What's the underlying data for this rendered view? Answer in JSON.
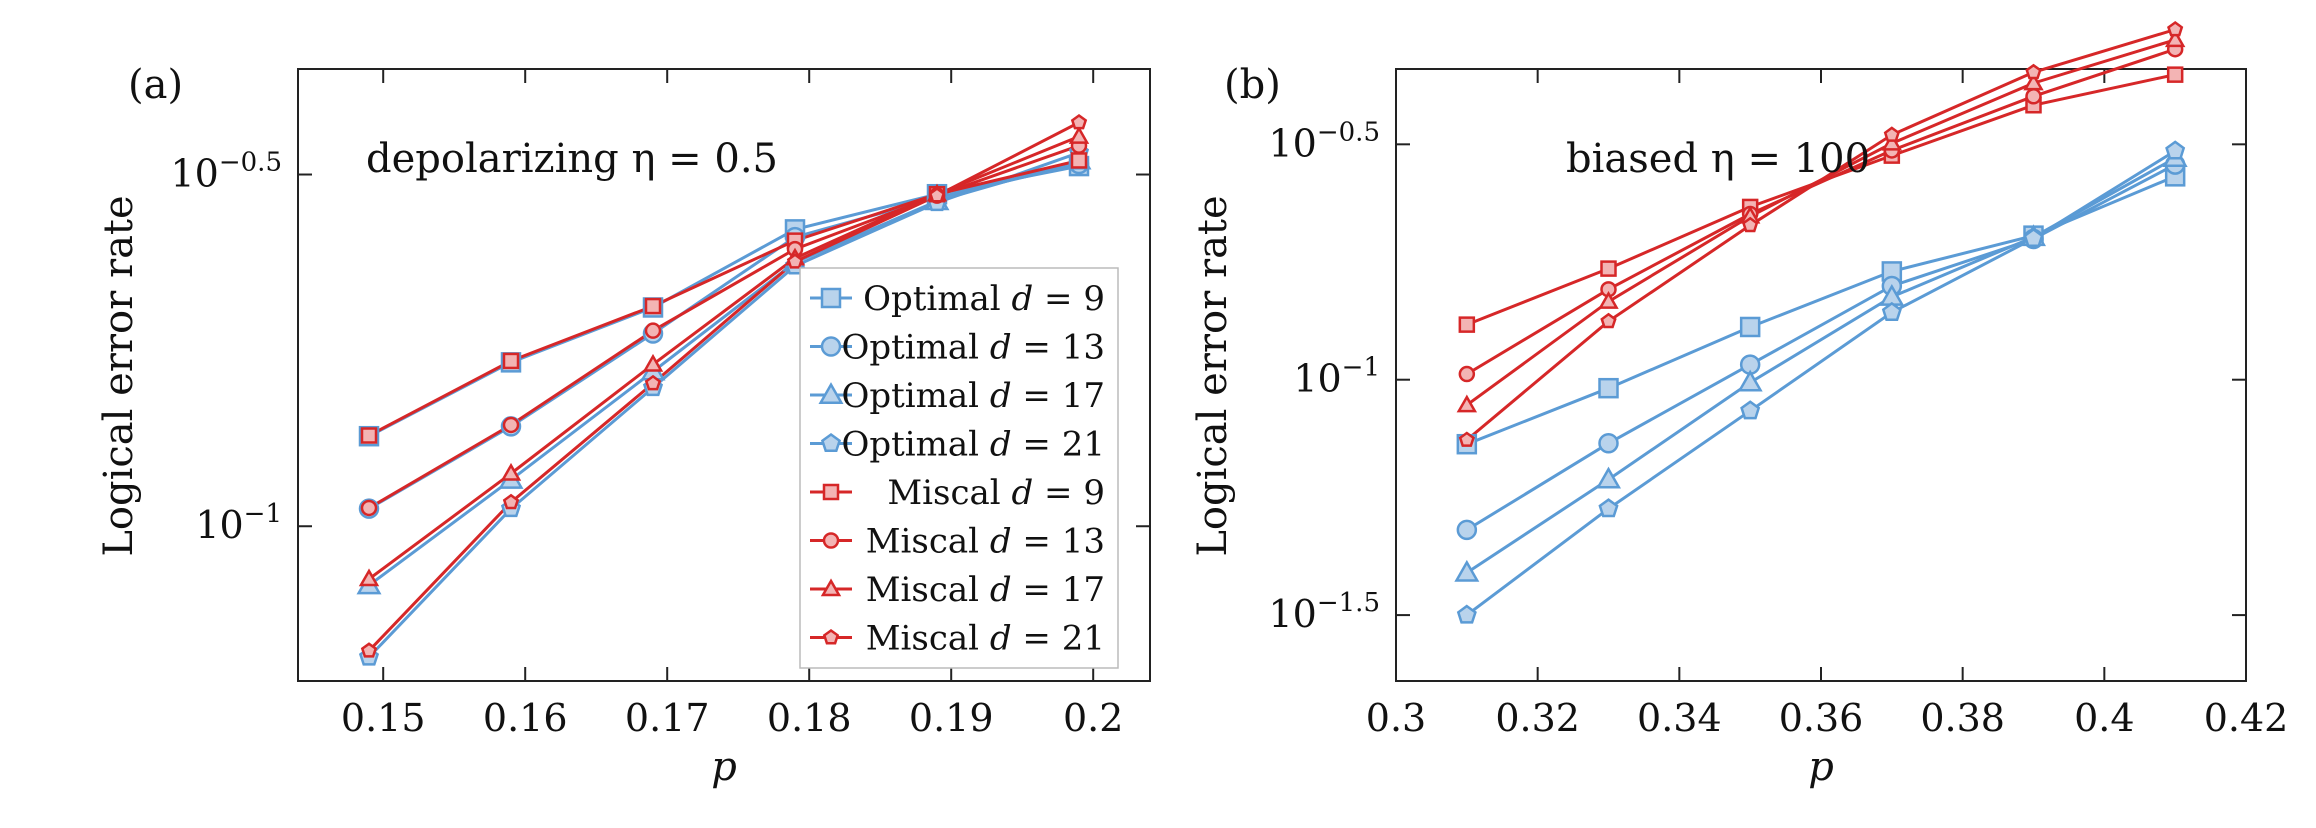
{
  "colors": {
    "optimal": "#5b9bd5",
    "optimal_fill": "#b9d3ec",
    "miscal": "#d62728",
    "miscal_fill": "#f3b4b4"
  },
  "chart_data": [
    {
      "panel_label": "(a)",
      "type": "line",
      "annotation": "depolarizing η = 0.5",
      "xlabel": "p",
      "ylabel": "Logical error rate",
      "y_scale": "log",
      "xlim": [
        0.144,
        0.204
      ],
      "ylim_log10": [
        -1.22,
        -0.35
      ],
      "x_ticks": [
        0.15,
        0.16,
        0.17,
        0.18,
        0.19,
        0.2
      ],
      "x_tick_labels": [
        "0.15",
        "0.16",
        "0.17",
        "0.18",
        "0.19",
        "0.2"
      ],
      "y_ticks_log10": [
        -0.5,
        -1
      ],
      "y_tick_exponents": [
        "−0.5",
        "−1"
      ],
      "legend_position": "lower-right",
      "x": [
        0.149,
        0.159,
        0.169,
        0.179,
        0.189,
        0.199
      ],
      "series": [
        {
          "name": "Optimal d = 9",
          "group": "optimal",
          "marker": "square",
          "values_log10": [
            -0.872,
            -0.767,
            -0.689,
            -0.578,
            -0.528,
            -0.488
          ]
        },
        {
          "name": "Optimal d = 13",
          "group": "optimal",
          "marker": "circle",
          "values_log10": [
            -0.975,
            -0.858,
            -0.726,
            -0.589,
            -0.533,
            -0.485
          ]
        },
        {
          "name": "Optimal d = 17",
          "group": "optimal",
          "marker": "triangle",
          "values_log10": [
            -1.084,
            -0.934,
            -0.78,
            -0.625,
            -0.538,
            -0.48
          ]
        },
        {
          "name": "Optimal d = 21",
          "group": "optimal",
          "marker": "pentagon",
          "values_log10": [
            -1.186,
            -0.975,
            -0.803,
            -0.63,
            -0.54,
            -0.469
          ]
        },
        {
          "name": "Miscal d = 9",
          "group": "miscal",
          "marker": "square",
          "values_log10": [
            -0.871,
            -0.765,
            -0.687,
            -0.594,
            -0.528,
            -0.48
          ]
        },
        {
          "name": "Miscal d = 13",
          "group": "miscal",
          "marker": "circle",
          "values_log10": [
            -0.974,
            -0.856,
            -0.722,
            -0.606,
            -0.53,
            -0.459
          ]
        },
        {
          "name": "Miscal d = 17",
          "group": "miscal",
          "marker": "triangle",
          "values_log10": [
            -1.075,
            -0.925,
            -0.77,
            -0.619,
            -0.528,
            -0.446
          ]
        },
        {
          "name": "Miscal d = 21",
          "group": "miscal",
          "marker": "pentagon",
          "values_log10": [
            -1.177,
            -0.966,
            -0.797,
            -0.624,
            -0.53,
            -0.426
          ]
        }
      ],
      "legend": [
        {
          "label": "Optimal",
          "d": "9",
          "group": "optimal",
          "marker": "square"
        },
        {
          "label": "Optimal",
          "d": "13",
          "group": "optimal",
          "marker": "circle"
        },
        {
          "label": "Optimal",
          "d": "17",
          "group": "optimal",
          "marker": "triangle"
        },
        {
          "label": "Optimal",
          "d": "21",
          "group": "optimal",
          "marker": "pentagon"
        },
        {
          "label": "Miscal",
          "d": "9",
          "group": "miscal",
          "marker": "square"
        },
        {
          "label": "Miscal",
          "d": "13",
          "group": "miscal",
          "marker": "circle"
        },
        {
          "label": "Miscal",
          "d": "17",
          "group": "miscal",
          "marker": "triangle"
        },
        {
          "label": "Miscal",
          "d": "21",
          "group": "miscal",
          "marker": "pentagon"
        }
      ]
    },
    {
      "panel_label": "(b)",
      "type": "line",
      "annotation": "biased η = 100",
      "xlabel": "p",
      "ylabel": "Logical error rate",
      "y_scale": "log",
      "xlim": [
        0.3,
        0.42
      ],
      "ylim_log10": [
        -1.64,
        -0.34
      ],
      "x_ticks": [
        0.3,
        0.32,
        0.34,
        0.36,
        0.38,
        0.4,
        0.42
      ],
      "x_tick_labels": [
        "0.3",
        "0.32",
        "0.34",
        "0.36",
        "0.38",
        "0.4",
        "0.42"
      ],
      "y_ticks_log10": [
        -0.5,
        -1,
        -1.5
      ],
      "y_tick_exponents": [
        "−0.5",
        "−1",
        "−1.5"
      ],
      "x": [
        0.31,
        0.33,
        0.35,
        0.37,
        0.39,
        0.41
      ],
      "series": [
        {
          "name": "Optimal d = 9",
          "group": "optimal",
          "marker": "square",
          "values_log10": [
            -1.137,
            -1.018,
            -0.888,
            -0.77,
            -0.694,
            -0.568
          ]
        },
        {
          "name": "Optimal d = 13",
          "group": "optimal",
          "marker": "circle",
          "values_log10": [
            -1.319,
            -1.135,
            -0.968,
            -0.801,
            -0.701,
            -0.543
          ]
        },
        {
          "name": "Optimal d = 17",
          "group": "optimal",
          "marker": "triangle",
          "values_log10": [
            -1.41,
            -1.212,
            -1.006,
            -0.824,
            -0.697,
            -0.529
          ]
        },
        {
          "name": "Optimal d = 21",
          "group": "optimal",
          "marker": "pentagon",
          "values_log10": [
            -1.5,
            -1.274,
            -1.066,
            -0.857,
            -0.7,
            -0.514
          ]
        },
        {
          "name": "Miscal d = 9",
          "group": "miscal",
          "marker": "square",
          "values_log10": [
            -0.883,
            -0.764,
            -0.633,
            -0.524,
            -0.417,
            -0.352
          ]
        },
        {
          "name": "Miscal d = 13",
          "group": "miscal",
          "marker": "circle",
          "values_log10": [
            -0.988,
            -0.808,
            -0.648,
            -0.513,
            -0.398,
            -0.298
          ]
        },
        {
          "name": "Miscal d = 17",
          "group": "miscal",
          "marker": "triangle",
          "values_log10": [
            -1.054,
            -0.834,
            -0.653,
            -0.498,
            -0.37,
            -0.278
          ]
        },
        {
          "name": "Miscal d = 21",
          "group": "miscal",
          "marker": "pentagon",
          "values_log10": [
            -1.128,
            -0.876,
            -0.672,
            -0.48,
            -0.347,
            -0.256
          ]
        }
      ]
    }
  ]
}
